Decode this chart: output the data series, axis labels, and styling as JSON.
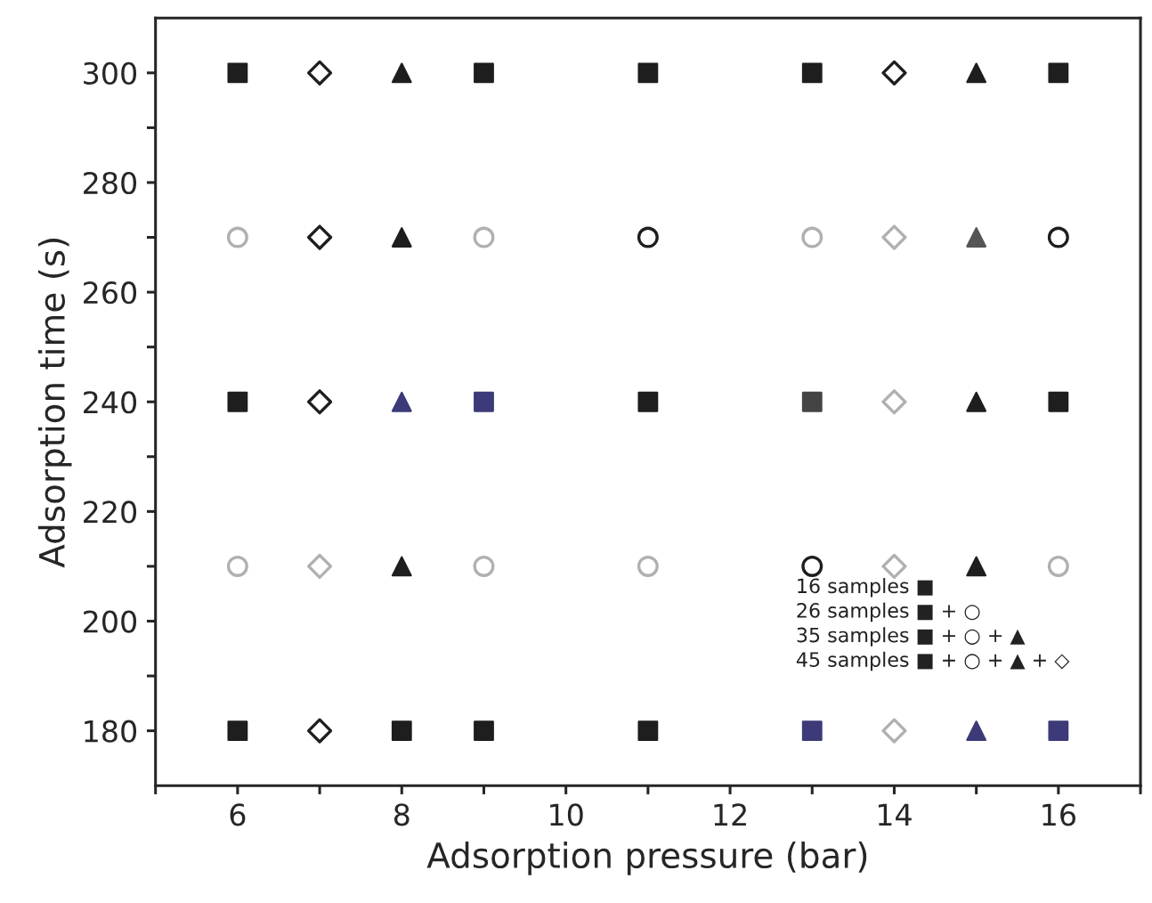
{
  "chart_data": {
    "type": "scatter",
    "xlabel": "Adsorption pressure (bar)",
    "ylabel": "Adsorption time (s)",
    "xlim": [
      5,
      17
    ],
    "ylim": [
      170,
      310
    ],
    "xticks": [
      {
        "value": 5,
        "label": null
      },
      6,
      {
        "value": 7,
        "label": null
      },
      8,
      {
        "value": 9,
        "label": null
      },
      10,
      {
        "value": 11,
        "label": null
      },
      12,
      {
        "value": 13,
        "label": null
      },
      14,
      {
        "value": 15,
        "label": null
      },
      16,
      {
        "value": 17,
        "label": null
      }
    ],
    "yticks": [
      180,
      {
        "value": 190,
        "label": null
      },
      200,
      {
        "value": 210,
        "label": null
      },
      220,
      {
        "value": 230,
        "label": null
      },
      240,
      {
        "value": 250,
        "label": null
      },
      260,
      {
        "value": 270,
        "label": null
      },
      280,
      {
        "value": 290,
        "label": null
      },
      300
    ],
    "grid": false,
    "legend": false,
    "series": [
      {
        "marker": "square",
        "x": [
          6,
          9,
          11,
          13,
          16,
          6,
          9,
          11,
          13,
          16,
          6,
          8,
          9,
          11,
          13,
          16
        ],
        "values": [
          300,
          300,
          300,
          300,
          300,
          240,
          240,
          240,
          240,
          240,
          180,
          180,
          180,
          180,
          180,
          180
        ],
        "colors": [
          "#1e1e1e",
          "#1e1e1e",
          "#1e1e1e",
          "#1e1e1e",
          "#1e1e1e",
          "#1e1e1e",
          "#3c3a78",
          "#1e1e1e",
          "#444444",
          "#1e1e1e",
          "#1e1e1e",
          "#1e1e1e",
          "#1e1e1e",
          "#1e1e1e",
          "#3c3a78",
          "#3c3a78"
        ]
      },
      {
        "marker": "circle",
        "x": [
          6,
          9,
          11,
          13,
          16,
          6,
          9,
          11,
          13,
          16
        ],
        "values": [
          270,
          270,
          270,
          270,
          270,
          210,
          210,
          210,
          210,
          210
        ],
        "colors": [
          "#b0b0b0",
          "#b0b0b0",
          "#1e1e1e",
          "#b0b0b0",
          "#1e1e1e",
          "#b0b0b0",
          "#b0b0b0",
          "#b0b0b0",
          "#1e1e1e",
          "#b0b0b0"
        ]
      },
      {
        "marker": "diamond",
        "x": [
          7,
          14,
          7,
          14,
          7,
          14,
          7,
          14,
          7,
          14
        ],
        "values": [
          300,
          300,
          270,
          270,
          240,
          240,
          210,
          210,
          180,
          180
        ],
        "colors": [
          "#1e1e1e",
          "#1e1e1e",
          "#1e1e1e",
          "#b0b0b0",
          "#1e1e1e",
          "#b0b0b0",
          "#b0b0b0",
          "#b0b0b0",
          "#1e1e1e",
          "#b0b0b0"
        ]
      },
      {
        "marker": "triangle",
        "x": [
          8,
          15,
          8,
          15,
          8,
          15,
          8,
          15,
          15
        ],
        "values": [
          300,
          300,
          270,
          270,
          240,
          240,
          210,
          210,
          180
        ],
        "colors": [
          "#1e1e1e",
          "#1e1e1e",
          "#1e1e1e",
          "#555555",
          "#3c3a78",
          "#1e1e1e",
          "#1e1e1e",
          "#1e1e1e",
          "#3c3a78"
        ]
      }
    ],
    "annotations": [
      "16 samples ■",
      "26 samples ■ + ○",
      "35 samples ■ + ○ + ▲",
      "45 samples ■ + ○ + ▲ + ◇"
    ]
  }
}
